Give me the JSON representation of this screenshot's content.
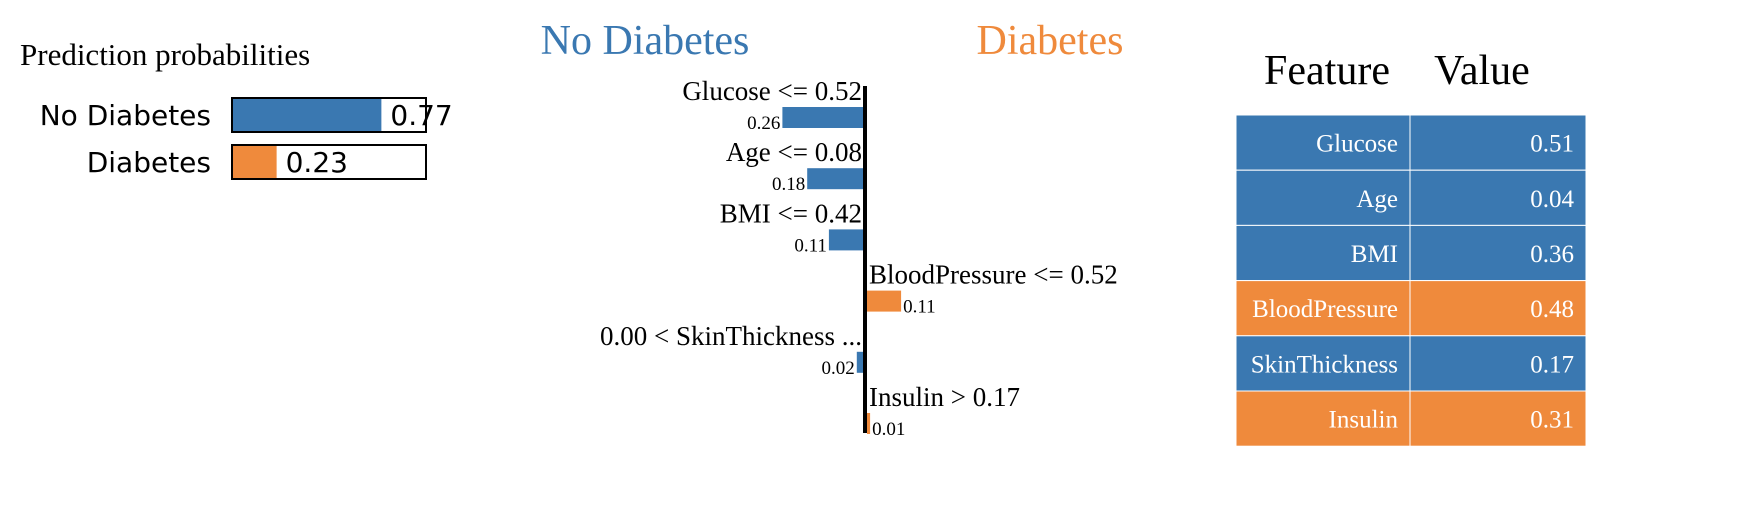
{
  "colors": {
    "no_diabetes": "#3a78b1",
    "diabetes": "#ef8a3c",
    "axis": "#000000",
    "cell_border": "#ffffff",
    "cell_text": "#ffffff",
    "box_border": "#000000"
  },
  "chart_data": [
    {
      "type": "bar",
      "orientation": "horizontal",
      "title": "Prediction probabilities",
      "categories": [
        "No Diabetes",
        "Diabetes"
      ],
      "values": [
        0.77,
        0.23
      ],
      "value_labels": [
        "0.77",
        "0.23"
      ],
      "colors": [
        "#3a78b1",
        "#ef8a3c"
      ],
      "xlim": [
        0,
        1
      ]
    },
    {
      "type": "bar",
      "orientation": "horizontal",
      "diverging": true,
      "class_labels": {
        "left": "No Diabetes",
        "right": "Diabetes"
      },
      "features": [
        {
          "condition": "Glucose <= 0.52",
          "weight": 0.26,
          "value_label": "0.26",
          "side": "left"
        },
        {
          "condition": "Age <= 0.08",
          "weight": 0.18,
          "value_label": "0.18",
          "side": "left"
        },
        {
          "condition": "BMI <= 0.42",
          "weight": 0.11,
          "value_label": "0.11",
          "side": "left"
        },
        {
          "condition": "BloodPressure <= 0.52",
          "weight": 0.11,
          "value_label": "0.11",
          "side": "right"
        },
        {
          "condition": "0.00 < SkinThickness ...",
          "weight": 0.02,
          "value_label": "0.02",
          "side": "left"
        },
        {
          "condition": "Insulin > 0.17",
          "weight": 0.01,
          "value_label": "0.01",
          "side": "right"
        }
      ]
    },
    {
      "type": "table",
      "columns": [
        "Feature",
        "Value"
      ],
      "rows": [
        {
          "feature": "Glucose",
          "value": "0.51",
          "class": "no_diabetes"
        },
        {
          "feature": "Age",
          "value": "0.04",
          "class": "no_diabetes"
        },
        {
          "feature": "BMI",
          "value": "0.36",
          "class": "no_diabetes"
        },
        {
          "feature": "BloodPressure",
          "value": "0.48",
          "class": "diabetes"
        },
        {
          "feature": "SkinThickness",
          "value": "0.17",
          "class": "no_diabetes"
        },
        {
          "feature": "Insulin",
          "value": "0.31",
          "class": "diabetes"
        }
      ]
    }
  ]
}
